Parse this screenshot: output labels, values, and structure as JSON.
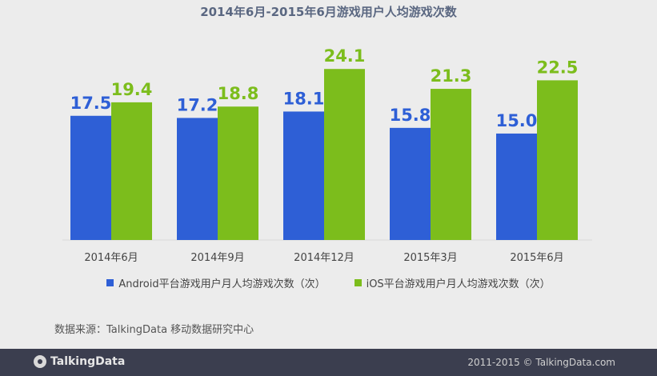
{
  "chart_data": {
    "type": "bar",
    "title": "2014年6月-2015年6月游戏用户人均游戏次数",
    "categories": [
      "2014年6月",
      "2014年9月",
      "2014年12月",
      "2015年3月",
      "2015年6月"
    ],
    "series": [
      {
        "name": "Android平台游戏用户月人均游戏次数（次）",
        "values": [
          17.5,
          17.2,
          18.1,
          15.8,
          15.0
        ],
        "color": "#2e5fd6",
        "labels": [
          "17.5",
          "17.2",
          "18.1",
          "15.8",
          "15.0"
        ]
      },
      {
        "name": "iOS平台游戏用户月人均游戏次数（次）",
        "values": [
          19.4,
          18.8,
          24.1,
          21.3,
          22.5
        ],
        "color": "#7cbd1c",
        "labels": [
          "19.4",
          "18.8",
          "24.1",
          "21.3",
          "22.5"
        ]
      }
    ],
    "ylim": [
      0,
      31
    ],
    "grid": false,
    "legend_position": "bottom"
  },
  "source_note": "数据来源：TalkingData 移动数据研究中心",
  "footer": {
    "logo_text": "TalkingData",
    "copyright": "2011-2015 © TalkingData.com"
  }
}
